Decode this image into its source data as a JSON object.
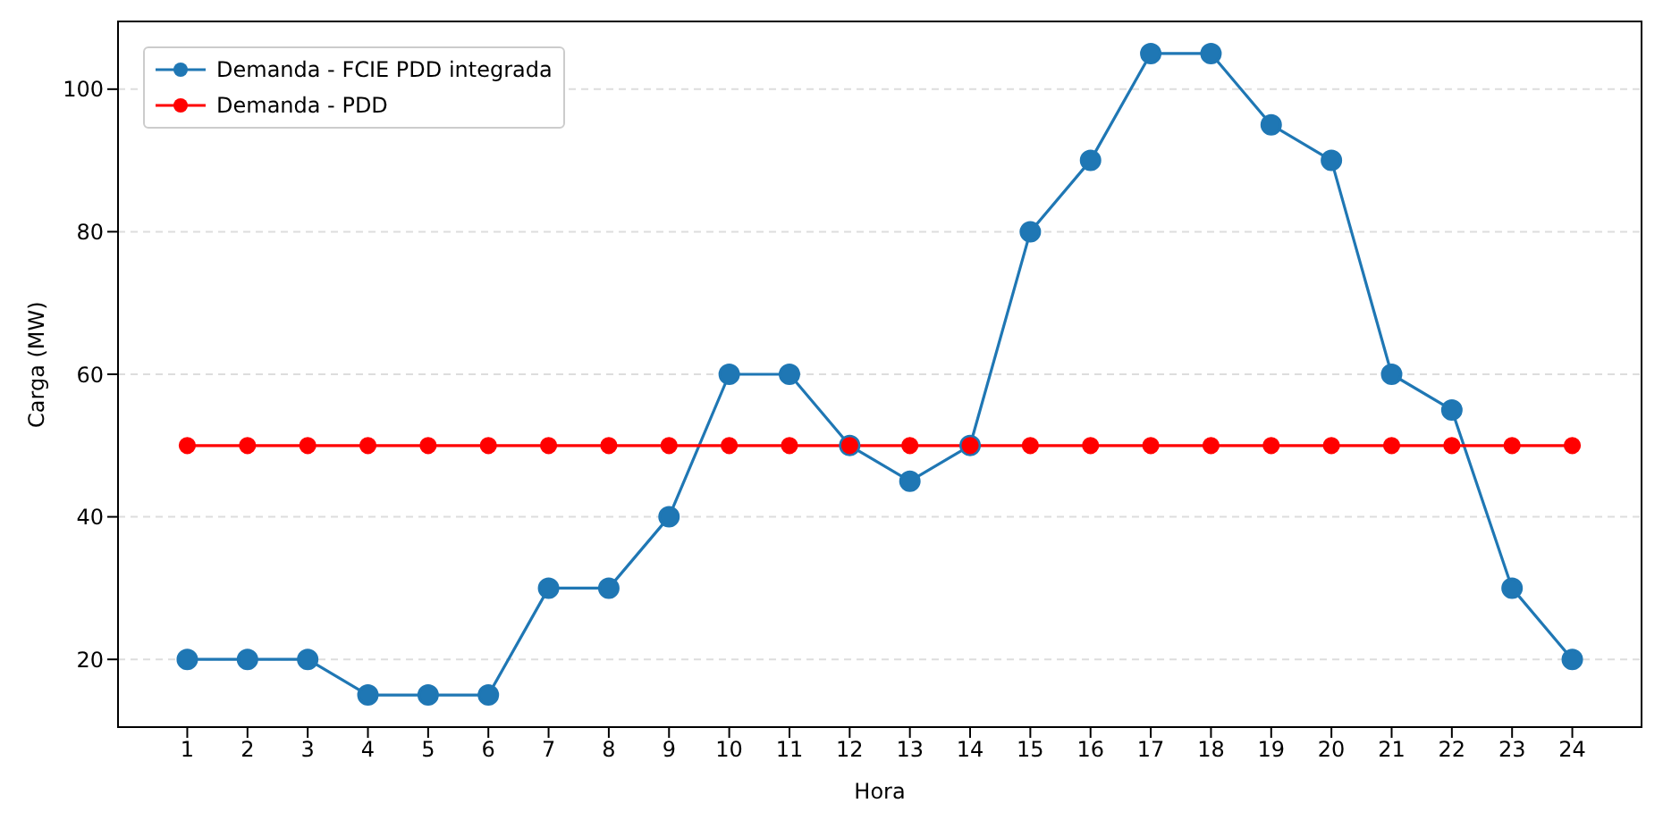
{
  "chart_data": {
    "type": "line",
    "xlabel": "Hora",
    "ylabel": "Carga (MW)",
    "x": [
      1,
      2,
      3,
      4,
      5,
      6,
      7,
      8,
      9,
      10,
      11,
      12,
      13,
      14,
      15,
      16,
      17,
      18,
      19,
      20,
      21,
      22,
      23,
      24
    ],
    "series": [
      {
        "name": "Demanda - FCIE PDD integrada",
        "color": "#1f77b4",
        "values": [
          20,
          20,
          20,
          15,
          15,
          15,
          30,
          30,
          40,
          60,
          60,
          50,
          45,
          50,
          80,
          90,
          105,
          105,
          95,
          90,
          60,
          55,
          30,
          20
        ]
      },
      {
        "name": "Demanda - PDD",
        "color": "#ff0000",
        "values": [
          50,
          50,
          50,
          50,
          50,
          50,
          50,
          50,
          50,
          50,
          50,
          50,
          50,
          50,
          50,
          50,
          50,
          50,
          50,
          50,
          50,
          50,
          50,
          50
        ]
      }
    ],
    "xlim": [
      -0.15,
      25.15
    ],
    "xticks": [
      1,
      2,
      3,
      4,
      5,
      6,
      7,
      8,
      9,
      10,
      11,
      12,
      13,
      14,
      15,
      16,
      17,
      18,
      19,
      20,
      21,
      22,
      23,
      24
    ],
    "ylim": [
      10.5,
      109.5
    ],
    "yticks": [
      20,
      40,
      60,
      80,
      100
    ],
    "grid": "y",
    "legend": "top left",
    "marker": "circle",
    "line_style": "solid"
  }
}
